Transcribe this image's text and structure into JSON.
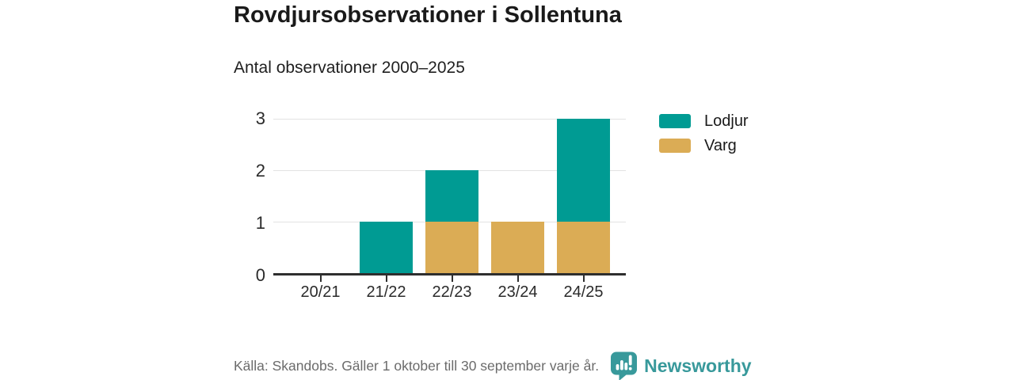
{
  "title": "Rovdjursobservationer i Sollentuna",
  "subtitle": "Antal observationer 2000–2025",
  "footer": {
    "source": "Källa: Skandobs. Gäller 1 oktober till 30 september varje år.",
    "brand": "Newsworthy"
  },
  "colors": {
    "lodjur_teal": "#009B93",
    "varg_tan": "#DBAC55",
    "axis": "#2E2E2E",
    "grid": "#E3E3E3",
    "brand_teal": "#38999B",
    "text": "#1A1A1A",
    "muted_text": "#6B6B6B"
  },
  "chart_data": {
    "type": "bar",
    "stacked": true,
    "title": "Rovdjursobservationer i Sollentuna",
    "subtitle": "Antal observationer 2000–2025",
    "categories": [
      "20/21",
      "21/22",
      "22/23",
      "23/24",
      "24/25"
    ],
    "series": [
      {
        "name": "Lodjur",
        "color": "#009B93",
        "values": [
          0,
          1,
          1,
          0,
          2
        ]
      },
      {
        "name": "Varg",
        "color": "#DBAC55",
        "values": [
          0,
          0,
          1,
          1,
          1
        ]
      }
    ],
    "stack_order_bottom_to_top": [
      "Varg",
      "Lodjur"
    ],
    "xlabel": "",
    "ylabel": "",
    "ylim": [
      0,
      3
    ],
    "yticks": [
      0,
      1,
      2,
      3
    ],
    "grid": true,
    "legend_position": "right"
  }
}
